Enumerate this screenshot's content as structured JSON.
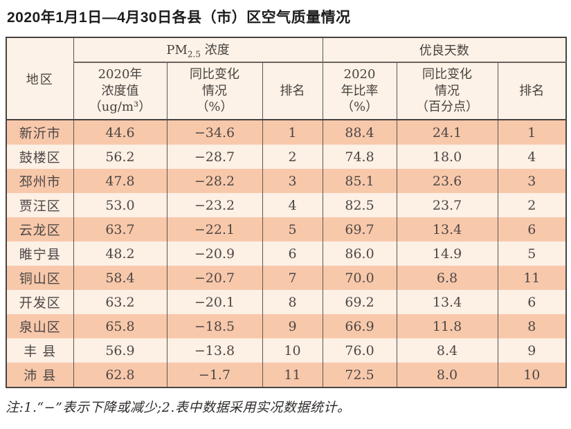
{
  "page": {
    "title": "2020年1月1日—4月30日各县（市）区空气质量情况",
    "note": "注:1.“−”表示下降或减少;2.表中数据采用实况数据统计。"
  },
  "table": {
    "header": {
      "region": "地区",
      "pm_prefix": "PM",
      "pm_sub": "2.5",
      "pm_suffix": " 浓度",
      "good_days": "优良天数",
      "concentration": "2020年\n浓度值\n（ug/m³）",
      "change_pct": "同比变化\n情况\n（%）",
      "rank1": "排名",
      "ratio": "2020\n年比率\n（%）",
      "change_pts": "同比变化\n情况\n（百分点）",
      "rank2": "排名"
    },
    "rows": [
      {
        "region": "新沂市",
        "conc": "44.6",
        "change1": "−34.6",
        "rank1": "1",
        "ratio": "88.4",
        "change2": "24.1",
        "rank2": "1"
      },
      {
        "region": "鼓楼区",
        "conc": "56.2",
        "change1": "−28.7",
        "rank1": "2",
        "ratio": "74.8",
        "change2": "18.0",
        "rank2": "4"
      },
      {
        "region": "邳州市",
        "conc": "47.8",
        "change1": "−28.2",
        "rank1": "3",
        "ratio": "85.1",
        "change2": "23.6",
        "rank2": "3"
      },
      {
        "region": "贾汪区",
        "conc": "53.0",
        "change1": "−23.2",
        "rank1": "4",
        "ratio": "82.5",
        "change2": "23.7",
        "rank2": "2"
      },
      {
        "region": "云龙区",
        "conc": "63.7",
        "change1": "−22.1",
        "rank1": "5",
        "ratio": "69.7",
        "change2": "13.4",
        "rank2": "6"
      },
      {
        "region": "睢宁县",
        "conc": "48.2",
        "change1": "−20.9",
        "rank1": "6",
        "ratio": "86.0",
        "change2": "14.9",
        "rank2": "5"
      },
      {
        "region": "铜山区",
        "conc": "58.4",
        "change1": "−20.7",
        "rank1": "7",
        "ratio": "70.0",
        "change2": "6.8",
        "rank2": "11"
      },
      {
        "region": "开发区",
        "conc": "63.2",
        "change1": "−20.1",
        "rank1": "8",
        "ratio": "69.2",
        "change2": "13.4",
        "rank2": "6"
      },
      {
        "region": "泉山区",
        "conc": "65.8",
        "change1": "−18.5",
        "rank1": "9",
        "ratio": "66.9",
        "change2": "11.8",
        "rank2": "8"
      },
      {
        "region": "丰 县",
        "conc": "56.9",
        "change1": "−13.8",
        "rank1": "10",
        "ratio": "76.0",
        "change2": "8.4",
        "rank2": "9"
      },
      {
        "region": "沛 县",
        "conc": "62.8",
        "change1": "−1.7",
        "rank1": "11",
        "ratio": "72.5",
        "change2": "8.0",
        "rank2": "10"
      }
    ]
  },
  "chart_data": {
    "type": "table",
    "title": "2020年1月1日—4月30日各县（市）区空气质量情况",
    "column_groups": [
      {
        "label": "PM2.5浓度",
        "span": [
          1,
          3
        ]
      },
      {
        "label": "优良天数",
        "span": [
          4,
          6
        ]
      }
    ],
    "columns": [
      "地区",
      "2020年浓度值（ug/m³）",
      "同比变化情况（%）",
      "排名",
      "2020年比率（%）",
      "同比变化情况（百分点）",
      "排名"
    ],
    "rows": [
      [
        "新沂市",
        44.6,
        -34.6,
        1,
        88.4,
        24.1,
        1
      ],
      [
        "鼓楼区",
        56.2,
        -28.7,
        2,
        74.8,
        18.0,
        4
      ],
      [
        "邳州市",
        47.8,
        -28.2,
        3,
        85.1,
        23.6,
        3
      ],
      [
        "贾汪区",
        53.0,
        -23.2,
        4,
        82.5,
        23.7,
        2
      ],
      [
        "云龙区",
        63.7,
        -22.1,
        5,
        69.7,
        13.4,
        6
      ],
      [
        "睢宁县",
        48.2,
        -20.9,
        6,
        86.0,
        14.9,
        5
      ],
      [
        "铜山区",
        58.4,
        -20.7,
        7,
        70.0,
        6.8,
        11
      ],
      [
        "开发区",
        63.2,
        -20.1,
        8,
        69.2,
        13.4,
        6
      ],
      [
        "泉山区",
        65.8,
        -18.5,
        9,
        66.9,
        11.8,
        8
      ],
      [
        "丰县",
        56.9,
        -13.8,
        10,
        76.0,
        8.4,
        9
      ],
      [
        "沛县",
        62.8,
        -1.7,
        11,
        72.5,
        8.0,
        10
      ]
    ],
    "note": "注:1.“−”表示下降或减少;2.表中数据采用实况数据统计。",
    "style": {
      "odd_row_bg": "#f8c8ab",
      "even_row_bg": "#fdf0e5",
      "header_bg": "#fcf2e7",
      "border_color": "#474340",
      "text_color": "#4c4744"
    }
  }
}
